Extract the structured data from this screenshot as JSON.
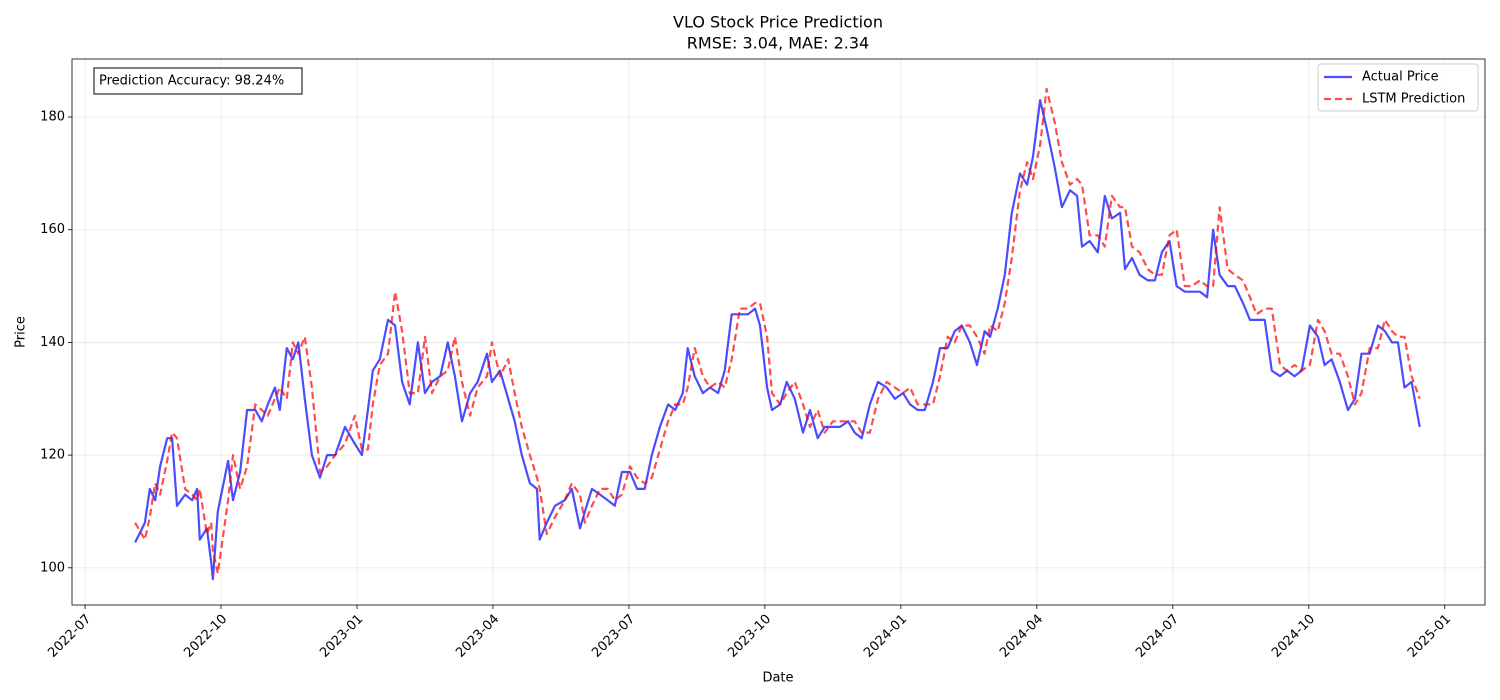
{
  "chart_data": {
    "type": "line",
    "title": "VLO Stock Price Prediction",
    "subtitle": "RMSE: 3.04, MAE: 2.34",
    "annotation": "Prediction Accuracy: 98.24%",
    "x_label": "Date",
    "y_label": "Price",
    "xlim": [
      2022.476,
      2025.074
    ],
    "ylim": [
      93.4,
      190.3
    ],
    "xticks": [
      {
        "value": 2022.5,
        "label": "2022-07"
      },
      {
        "value": 2022.75,
        "label": "2022-10"
      },
      {
        "value": 2023.0,
        "label": "2023-01"
      },
      {
        "value": 2023.25,
        "label": "2023-04"
      },
      {
        "value": 2023.5,
        "label": "2023-07"
      },
      {
        "value": 2023.75,
        "label": "2023-10"
      },
      {
        "value": 2024.0,
        "label": "2024-01"
      },
      {
        "value": 2024.25,
        "label": "2024-04"
      },
      {
        "value": 2024.5,
        "label": "2024-07"
      },
      {
        "value": 2024.75,
        "label": "2024-10"
      },
      {
        "value": 2025.0,
        "label": "2025-01"
      }
    ],
    "yticks": [
      100,
      120,
      140,
      160,
      180
    ],
    "grid": true,
    "legend": "upper right",
    "x": [
      2022.592,
      2022.61,
      2022.619,
      2022.629,
      2022.638,
      2022.651,
      2022.66,
      2022.669,
      2022.684,
      2022.697,
      2022.706,
      2022.711,
      2022.724,
      2022.732,
      2022.735,
      2022.744,
      2022.763,
      2022.772,
      2022.785,
      2022.798,
      2022.813,
      2022.825,
      2022.836,
      2022.849,
      2022.858,
      2022.871,
      2022.882,
      2022.892,
      2022.904,
      2022.917,
      2022.932,
      2022.945,
      2022.96,
      2022.978,
      2022.996,
      2023.009,
      2023.02,
      2023.029,
      2023.042,
      2023.057,
      2023.07,
      2023.083,
      2023.097,
      2023.112,
      2023.125,
      2023.138,
      2023.153,
      2023.167,
      2023.18,
      2023.193,
      2023.208,
      2023.222,
      2023.239,
      2023.248,
      2023.263,
      2023.278,
      2023.29,
      2023.303,
      2023.318,
      2023.331,
      2023.336,
      2023.349,
      2023.364,
      2023.382,
      2023.395,
      2023.41,
      2023.419,
      2023.432,
      2023.447,
      2023.461,
      2023.474,
      2023.487,
      2023.502,
      2023.515,
      2023.529,
      2023.542,
      2023.557,
      2023.572,
      2023.585,
      2023.599,
      2023.608,
      2023.621,
      2023.636,
      2023.649,
      2023.664,
      2023.676,
      2023.689,
      2023.704,
      2023.719,
      2023.732,
      2023.741,
      2023.754,
      2023.763,
      2023.778,
      2023.79,
      2023.805,
      2023.82,
      2023.833,
      2023.847,
      2023.86,
      2023.875,
      2023.888,
      2023.903,
      2023.915,
      2023.928,
      2023.943,
      2023.958,
      2023.974,
      2023.989,
      2024.004,
      2024.017,
      2024.031,
      2024.044,
      2024.059,
      2024.072,
      2024.086,
      2024.099,
      2024.112,
      2024.127,
      2024.14,
      2024.154,
      2024.164,
      2024.178,
      2024.191,
      2024.204,
      2024.219,
      2024.232,
      2024.243,
      2024.256,
      2024.268,
      2024.283,
      2024.296,
      2024.311,
      2024.324,
      2024.333,
      2024.347,
      2024.362,
      2024.375,
      2024.388,
      2024.403,
      2024.412,
      2024.425,
      2024.439,
      2024.454,
      2024.467,
      2024.48,
      2024.494,
      2024.507,
      2024.522,
      2024.535,
      2024.55,
      2024.563,
      2024.574,
      2024.586,
      2024.601,
      2024.614,
      2024.629,
      2024.642,
      2024.654,
      2024.669,
      2024.682,
      2024.697,
      2024.71,
      2024.724,
      2024.737,
      2024.752,
      2024.767,
      2024.779,
      2024.792,
      2024.807,
      2024.822,
      2024.835,
      2024.847,
      2024.862,
      2024.877,
      2024.89,
      2024.903,
      2024.914,
      2024.926,
      2024.939,
      2024.954
    ],
    "series": [
      {
        "name": "Actual Price",
        "color": "#0000ff",
        "linestyle": "solid",
        "values": [
          104.5,
          108,
          114,
          112,
          118,
          123,
          123,
          111,
          113,
          112,
          114,
          105,
          107,
          101,
          98,
          110,
          119,
          112,
          117,
          128,
          128,
          126,
          129,
          132,
          128,
          139,
          137,
          140,
          130,
          120,
          116,
          120,
          120,
          125,
          122,
          120,
          128,
          135,
          137,
          144,
          143,
          133,
          129,
          140,
          131,
          133,
          134,
          140,
          134,
          126,
          131,
          133,
          138,
          133,
          135,
          130,
          126,
          120,
          115,
          114,
          105,
          108,
          111,
          112,
          114,
          107,
          110,
          114,
          113,
          112,
          111,
          117,
          117,
          114,
          114,
          120,
          125,
          129,
          128,
          131,
          139,
          134,
          131,
          132,
          131,
          135,
          145,
          145,
          145,
          146,
          143,
          132,
          128,
          129,
          133,
          130,
          124,
          128,
          123,
          125,
          125,
          125,
          126,
          124,
          123,
          129,
          133,
          132,
          130,
          131,
          129,
          128,
          128,
          133,
          139,
          139,
          142,
          143,
          140,
          136,
          142,
          141,
          146,
          152,
          163,
          170,
          168,
          173,
          183,
          178,
          171,
          164,
          167,
          166,
          157,
          158,
          156,
          166,
          162,
          163,
          153,
          155,
          152,
          151,
          151,
          156,
          158,
          150,
          149,
          149,
          149,
          148,
          160,
          152,
          150,
          150,
          147,
          144,
          144,
          144,
          135,
          134,
          135,
          134,
          135,
          143,
          141,
          136,
          137,
          133,
          128,
          130,
          138,
          138,
          143,
          142,
          140,
          140,
          132,
          133,
          125
        ]
      },
      {
        "name": "LSTM Prediction",
        "color": "#ff0000",
        "linestyle": "dashed",
        "values": [
          108,
          105,
          109,
          115,
          113,
          119,
          124,
          123,
          114,
          113,
          112,
          114,
          106,
          108,
          103,
          99,
          112,
          120,
          114,
          118,
          129,
          128,
          127,
          130,
          132,
          130,
          140,
          138,
          141,
          132,
          117,
          118,
          120,
          122,
          127,
          121,
          121,
          129,
          136,
          138,
          149,
          142,
          131,
          131,
          141,
          131,
          134,
          135,
          141,
          133,
          127,
          132,
          134,
          140,
          134,
          137,
          131,
          125,
          120,
          116,
          114,
          106,
          109,
          112,
          115,
          113,
          108,
          111,
          114,
          114,
          112,
          113,
          118,
          116,
          115,
          116,
          121,
          126,
          129,
          129,
          132,
          139,
          134,
          132,
          133,
          132,
          137,
          146,
          146,
          147,
          147,
          141,
          131,
          129,
          131,
          133,
          129,
          125,
          128,
          124,
          126,
          126,
          126,
          126,
          124,
          124,
          130,
          133,
          132,
          131,
          132,
          129,
          129,
          129,
          134,
          141,
          140,
          143,
          143,
          141,
          138,
          143,
          142,
          147,
          155,
          167,
          172,
          169,
          175,
          185,
          179,
          172,
          168,
          169,
          168,
          159,
          159,
          157,
          166,
          164,
          164,
          157,
          156,
          153,
          152,
          152,
          159,
          160,
          150,
          150,
          151,
          150,
          150,
          164,
          153,
          152,
          151,
          148,
          145,
          146,
          146,
          136,
          135,
          136,
          135,
          136,
          144,
          142,
          138,
          138,
          134,
          129,
          131,
          139,
          139,
          144,
          142,
          141,
          141,
          134,
          130
        ]
      }
    ]
  }
}
